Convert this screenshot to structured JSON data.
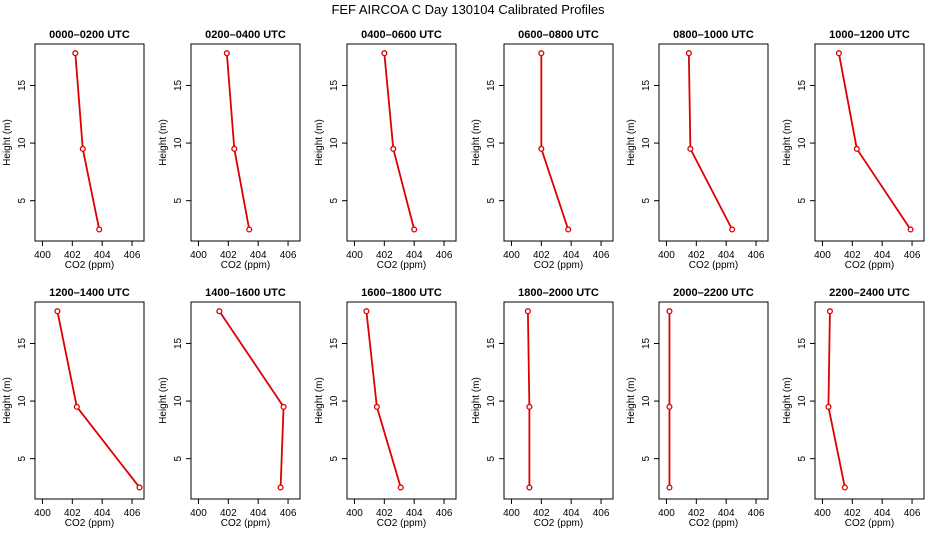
{
  "title": "FEF AIRCOA C  Day 130104  Calibrated Profiles",
  "colors": {
    "series": "#dd0000",
    "axis": "#000000",
    "background": "#ffffff"
  },
  "chart_data": [
    {
      "type": "line",
      "title": "0000–0200 UTC",
      "xlabel": "CO2 (ppm)",
      "ylabel": "Height (m)",
      "xlim": [
        399.5,
        406.8
      ],
      "ylim": [
        1.5,
        18.6
      ],
      "xticks": [
        400,
        402,
        404,
        406
      ],
      "yticks": [
        5,
        10,
        15
      ],
      "x": [
        402.2,
        402.7,
        403.8
      ],
      "y": [
        17.8,
        9.5,
        2.5
      ]
    },
    {
      "type": "line",
      "title": "0200–0400 UTC",
      "xlabel": "CO2 (ppm)",
      "ylabel": "Height (m)",
      "xlim": [
        399.5,
        406.8
      ],
      "ylim": [
        1.5,
        18.6
      ],
      "xticks": [
        400,
        402,
        404,
        406
      ],
      "yticks": [
        5,
        10,
        15
      ],
      "x": [
        401.9,
        402.4,
        403.4
      ],
      "y": [
        17.8,
        9.5,
        2.5
      ]
    },
    {
      "type": "line",
      "title": "0400–0600 UTC",
      "xlabel": "CO2 (ppm)",
      "ylabel": "Height (m)",
      "xlim": [
        399.5,
        406.8
      ],
      "ylim": [
        1.5,
        18.6
      ],
      "xticks": [
        400,
        402,
        404,
        406
      ],
      "yticks": [
        5,
        10,
        15
      ],
      "x": [
        402.0,
        402.6,
        404.0
      ],
      "y": [
        17.8,
        9.5,
        2.5
      ]
    },
    {
      "type": "line",
      "title": "0600–0800 UTC",
      "xlabel": "CO2 (ppm)",
      "ylabel": "Height (m)",
      "xlim": [
        399.5,
        406.8
      ],
      "ylim": [
        1.5,
        18.6
      ],
      "xticks": [
        400,
        402,
        404,
        406
      ],
      "yticks": [
        5,
        10,
        15
      ],
      "x": [
        402.0,
        402.0,
        403.8
      ],
      "y": [
        17.8,
        9.5,
        2.5
      ]
    },
    {
      "type": "line",
      "title": "0800–1000 UTC",
      "xlabel": "CO2 (ppm)",
      "ylabel": "Height (m)",
      "xlim": [
        399.5,
        406.8
      ],
      "ylim": [
        1.5,
        18.6
      ],
      "xticks": [
        400,
        402,
        404,
        406
      ],
      "yticks": [
        5,
        10,
        15
      ],
      "x": [
        401.5,
        401.6,
        404.4
      ],
      "y": [
        17.8,
        9.5,
        2.5
      ]
    },
    {
      "type": "line",
      "title": "1000–1200 UTC",
      "xlabel": "CO2 (ppm)",
      "ylabel": "Height (m)",
      "xlim": [
        399.5,
        406.8
      ],
      "ylim": [
        1.5,
        18.6
      ],
      "xticks": [
        400,
        402,
        404,
        406
      ],
      "yticks": [
        5,
        10,
        15
      ],
      "x": [
        401.1,
        402.3,
        405.9
      ],
      "y": [
        17.8,
        9.5,
        2.5
      ]
    },
    {
      "type": "line",
      "title": "1200–1400 UTC",
      "xlabel": "CO2 (ppm)",
      "ylabel": "Height (m)",
      "xlim": [
        399.5,
        406.8
      ],
      "ylim": [
        1.5,
        18.6
      ],
      "xticks": [
        400,
        402,
        404,
        406
      ],
      "yticks": [
        5,
        10,
        15
      ],
      "x": [
        401.0,
        402.3,
        406.5
      ],
      "y": [
        17.8,
        9.5,
        2.5
      ]
    },
    {
      "type": "line",
      "title": "1400–1600 UTC",
      "xlabel": "CO2 (ppm)",
      "ylabel": "Height (m)",
      "xlim": [
        399.5,
        406.8
      ],
      "ylim": [
        1.5,
        18.6
      ],
      "xticks": [
        400,
        402,
        404,
        406
      ],
      "yticks": [
        5,
        10,
        15
      ],
      "x": [
        401.4,
        405.7,
        405.5
      ],
      "y": [
        17.8,
        9.5,
        2.5
      ]
    },
    {
      "type": "line",
      "title": "1600–1800 UTC",
      "xlabel": "CO2 (ppm)",
      "ylabel": "Height (m)",
      "xlim": [
        399.5,
        406.8
      ],
      "ylim": [
        1.5,
        18.6
      ],
      "xticks": [
        400,
        402,
        404,
        406
      ],
      "yticks": [
        5,
        10,
        15
      ],
      "x": [
        400.8,
        401.5,
        403.1
      ],
      "y": [
        17.8,
        9.5,
        2.5
      ]
    },
    {
      "type": "line",
      "title": "1800–2000 UTC",
      "xlabel": "CO2 (ppm)",
      "ylabel": "Height (m)",
      "xlim": [
        399.5,
        406.8
      ],
      "ylim": [
        1.5,
        18.6
      ],
      "xticks": [
        400,
        402,
        404,
        406
      ],
      "yticks": [
        5,
        10,
        15
      ],
      "x": [
        401.1,
        401.2,
        401.2
      ],
      "y": [
        17.8,
        9.5,
        2.5
      ]
    },
    {
      "type": "line",
      "title": "2000–2200 UTC",
      "xlabel": "CO2 (ppm)",
      "ylabel": "Height (m)",
      "xlim": [
        399.5,
        406.8
      ],
      "ylim": [
        1.5,
        18.6
      ],
      "xticks": [
        400,
        402,
        404,
        406
      ],
      "yticks": [
        5,
        10,
        15
      ],
      "x": [
        400.2,
        400.2,
        400.2
      ],
      "y": [
        17.8,
        9.5,
        2.5
      ]
    },
    {
      "type": "line",
      "title": "2200–2400 UTC",
      "xlabel": "CO2 (ppm)",
      "ylabel": "Height (m)",
      "xlim": [
        399.5,
        406.8
      ],
      "ylim": [
        1.5,
        18.6
      ],
      "xticks": [
        400,
        402,
        404,
        406
      ],
      "yticks": [
        5,
        10,
        15
      ],
      "x": [
        400.5,
        400.4,
        401.5
      ],
      "y": [
        17.8,
        9.5,
        2.5
      ]
    }
  ]
}
